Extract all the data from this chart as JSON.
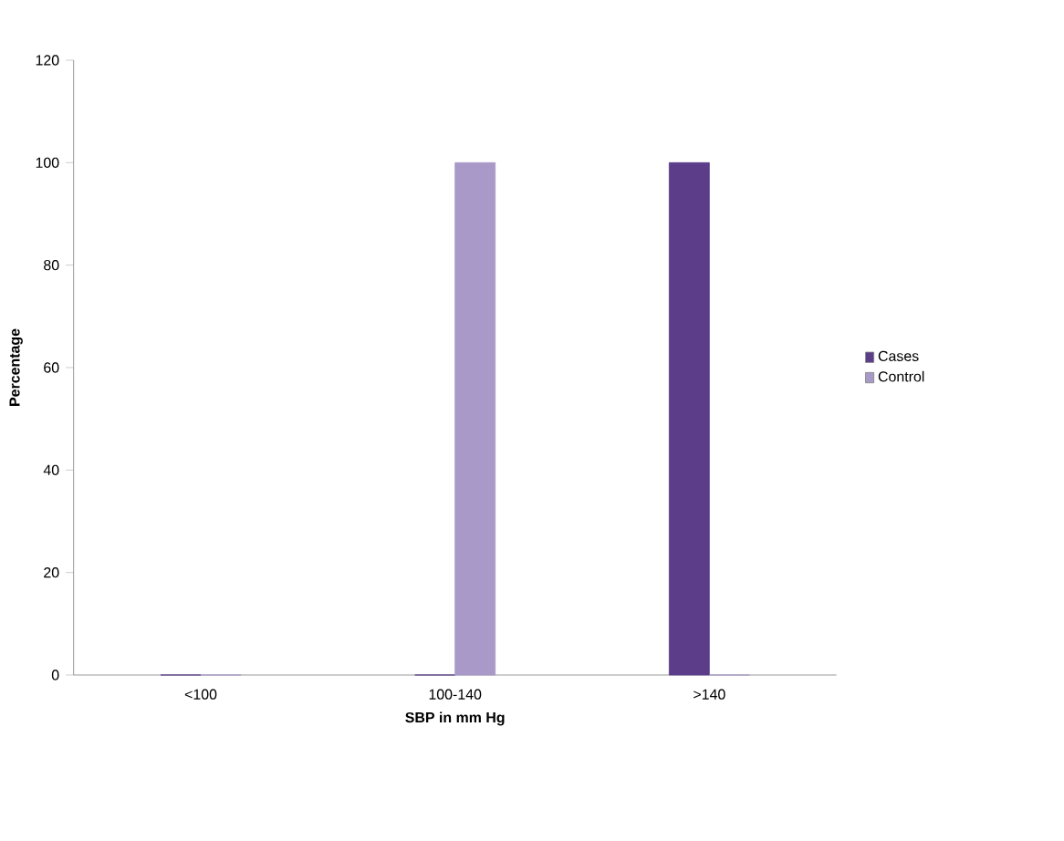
{
  "chart_data": {
    "type": "bar",
    "xlabel": "SBP in mm Hg",
    "ylabel": "Percentage",
    "categories": [
      "<100",
      "100-140",
      ">140"
    ],
    "series": [
      {
        "name": "Cases",
        "color": "#5b3d8a",
        "values": [
          0,
          0,
          100
        ]
      },
      {
        "name": "Control",
        "color": "#a899c8",
        "values": [
          0,
          100,
          0
        ]
      }
    ],
    "ylim": [
      0,
      120
    ],
    "yticks": [
      0,
      20,
      40,
      60,
      80,
      100,
      120
    ],
    "legend": "right",
    "grid": false
  }
}
